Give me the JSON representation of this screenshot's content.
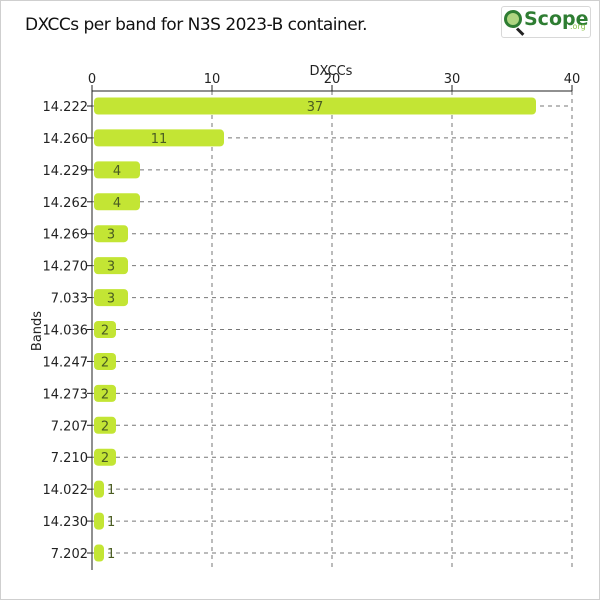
{
  "title": "DXCCs per band for N3S 2023-B container.",
  "logo": {
    "text": "Scope",
    "suffix": ".org",
    "icon": "magnifier-icon"
  },
  "colors": {
    "bar": "#c3e534",
    "bar_label": "#4a5c22",
    "grid": "#777777",
    "axis": "#222222",
    "text": "#222222"
  },
  "chart_data": {
    "type": "bar",
    "orientation": "horizontal",
    "title": "DXCCs per band for N3S 2023-B container.",
    "xlabel": "DXCCs",
    "ylabel": "Bands",
    "xlim": [
      0,
      40
    ],
    "xticks": [
      0,
      10,
      20,
      30,
      40
    ],
    "grid": true,
    "categories": [
      "14.222",
      "14.260",
      "14.229",
      "14.262",
      "14.269",
      "14.270",
      "7.033",
      "14.036",
      "14.247",
      "14.273",
      "7.207",
      "7.210",
      "14.022",
      "14.230",
      "7.202"
    ],
    "values": [
      37,
      11,
      4,
      4,
      3,
      3,
      3,
      2,
      2,
      2,
      2,
      2,
      1,
      1,
      1
    ]
  }
}
